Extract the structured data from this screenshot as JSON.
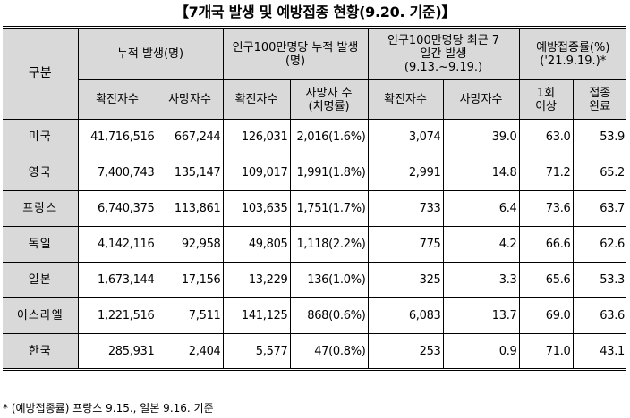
{
  "title": "【7개국 발생 및 예방접종 현황(9.20. 기준)】",
  "header": {
    "category": "구분",
    "cumulative": "누적 발생(명)",
    "per_million": "인구100만명당 누적 발생(명)",
    "recent_7days": "인구100만명당 최근 7일간 발생 (9.13.~9.19.)",
    "vaccination": "예방접종률(%) ('21.9.19.)*",
    "cases": "확진자수",
    "deaths": "사망자수",
    "deaths_rate": "사망자 수 (치명률)",
    "one_dose": "1회 이상",
    "fully": "접종 완료"
  },
  "rows": [
    {
      "country": "미국",
      "cum_cases": "41,716,516",
      "cum_deaths": "667,244",
      "pm_cases": "126,031",
      "pm_deaths": "2,016(1.6%)",
      "r7_cases": "3,074",
      "r7_deaths": "39.0",
      "one_dose": "63.0",
      "fully": "53.9"
    },
    {
      "country": "영국",
      "cum_cases": "7,400,743",
      "cum_deaths": "135,147",
      "pm_cases": "109,017",
      "pm_deaths": "1,991(1.8%)",
      "r7_cases": "2,991",
      "r7_deaths": "14.8",
      "one_dose": "71.2",
      "fully": "65.2"
    },
    {
      "country": "프랑스",
      "cum_cases": "6,740,375",
      "cum_deaths": "113,861",
      "pm_cases": "103,635",
      "pm_deaths": "1,751(1.7%)",
      "r7_cases": "733",
      "r7_deaths": "6.4",
      "one_dose": "73.6",
      "fully": "63.7"
    },
    {
      "country": "독일",
      "cum_cases": "4,142,116",
      "cum_deaths": "92,958",
      "pm_cases": "49,805",
      "pm_deaths": "1,118(2.2%)",
      "r7_cases": "775",
      "r7_deaths": "4.2",
      "one_dose": "66.6",
      "fully": "62.6"
    },
    {
      "country": "일본",
      "cum_cases": "1,673,144",
      "cum_deaths": "17,156",
      "pm_cases": "13,229",
      "pm_deaths": "136(1.0%)",
      "r7_cases": "325",
      "r7_deaths": "3.3",
      "one_dose": "65.6",
      "fully": "53.3"
    },
    {
      "country": "이스라엘",
      "cum_cases": "1,221,516",
      "cum_deaths": "7,511",
      "pm_cases": "141,125",
      "pm_deaths": "868(0.6%)",
      "r7_cases": "6,083",
      "r7_deaths": "13.7",
      "one_dose": "69.0",
      "fully": "63.6"
    },
    {
      "country": "한국",
      "cum_cases": "285,931",
      "cum_deaths": "2,404",
      "pm_cases": "5,577",
      "pm_deaths": "47(0.8%)",
      "r7_cases": "253",
      "r7_deaths": "0.9",
      "one_dose": "71.0",
      "fully": "43.1"
    }
  ],
  "footnote": "* (예방접종률) 프랑스 9.15., 일본 9.16. 기준"
}
